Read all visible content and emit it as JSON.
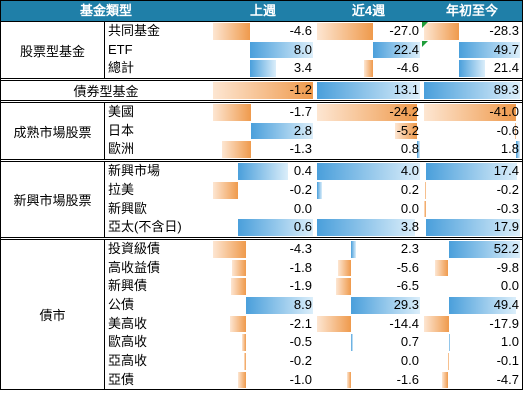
{
  "colors": {
    "header_bg": "#1f7fa8",
    "positive_bar": "#4a9fdb",
    "positive_bar_end": "#dbeefa",
    "negative_bar": "#ef9a4c",
    "negative_bar_end": "#fde6d2",
    "error_indicator": "#1f9d3a"
  },
  "chart_data": {
    "type": "table",
    "columns": [
      "基金類型",
      "上週",
      "近4週",
      "年初至今"
    ],
    "sections": [
      {
        "label": "股票型基金",
        "rows": [
          {
            "name": "共同基金",
            "values": [
              "-4.6",
              "-27.0",
              "-28.3"
            ],
            "indicator": [
              false,
              false,
              true
            ]
          },
          {
            "name": "ETF",
            "values": [
              "8.0",
              "22.4",
              "49.7"
            ],
            "indicator": [
              false,
              false,
              true
            ]
          },
          {
            "name": "總計",
            "values": [
              "3.4",
              "-4.6",
              "21.4"
            ]
          }
        ]
      },
      {
        "label": "債券型基金",
        "rows": [
          {
            "values": [
              "-1.2",
              "13.1",
              "89.3"
            ]
          }
        ]
      },
      {
        "label": "成熟市場股票",
        "rows": [
          {
            "name": "美國",
            "values": [
              "-1.7",
              "-24.2",
              "-41.0"
            ]
          },
          {
            "name": "日本",
            "values": [
              "2.8",
              "-5.2",
              "-0.6"
            ]
          },
          {
            "name": "歐洲",
            "values": [
              "-1.3",
              "0.8",
              "1.8"
            ]
          }
        ]
      },
      {
        "label": "新興市場股票",
        "rows": [
          {
            "name": "新興市場",
            "values": [
              "0.4",
              "4.0",
              "17.4"
            ]
          },
          {
            "name": "拉美",
            "values": [
              "-0.2",
              "0.2",
              "-0.2"
            ]
          },
          {
            "name": "新興歐",
            "values": [
              "0.0",
              "0.0",
              "-0.3"
            ]
          },
          {
            "name": "亞太(不含日)",
            "values": [
              "0.6",
              "3.8",
              "17.9"
            ]
          }
        ]
      },
      {
        "label": "債市",
        "rows": [
          {
            "name": "投資級債",
            "values": [
              "-4.3",
              "2.3",
              "52.2"
            ]
          },
          {
            "name": "高收益債",
            "values": [
              "-1.8",
              "-5.6",
              "-9.8"
            ]
          },
          {
            "name": "新興債",
            "values": [
              "-1.9",
              "-6.5",
              "0.0"
            ]
          },
          {
            "name": "公債",
            "values": [
              "8.9",
              "29.3",
              "49.4"
            ]
          },
          {
            "name": "美高收",
            "values": [
              "-2.1",
              "-14.4",
              "-17.9"
            ]
          },
          {
            "name": "歐高收",
            "values": [
              "-0.5",
              "0.7",
              "1.0"
            ]
          },
          {
            "name": "亞高收",
            "values": [
              "-0.2",
              "0.0",
              "-0.1"
            ]
          },
          {
            "name": "亞債",
            "values": [
              "-1.0",
              "-1.6",
              "-4.7"
            ]
          }
        ]
      }
    ]
  }
}
